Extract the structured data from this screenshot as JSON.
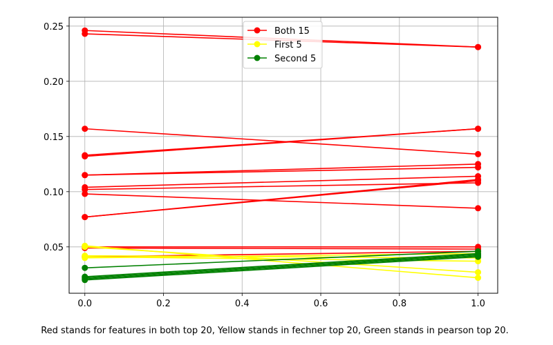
{
  "chart_data": {
    "type": "line",
    "title": "",
    "xlabel": "",
    "ylabel": "",
    "xlim": [
      -0.04,
      1.05
    ],
    "ylim": [
      0.008,
      0.258
    ],
    "grid": true,
    "legend_position": "top-center",
    "x_ticks": [
      0,
      0.2,
      0.4,
      0.6,
      0.8,
      1.0
    ],
    "x_tick_labels": [
      "0.0",
      "0.2",
      "0.4",
      "0.6",
      "0.8",
      "1.0"
    ],
    "y_ticks": [
      0.05,
      0.1,
      0.15,
      0.2,
      0.25
    ],
    "y_tick_labels": [
      "0.05",
      "0.10",
      "0.15",
      "0.20",
      "0.25"
    ],
    "legend": [
      {
        "name": "Both 15",
        "color": "#ff0000"
      },
      {
        "name": "First 5",
        "color": "#ffff00"
      },
      {
        "name": "Second 5",
        "color": "#008000"
      }
    ],
    "groups": [
      {
        "color": "#ff0000",
        "lines": [
          [
            0.246,
            0.231
          ],
          [
            0.243,
            0.231
          ],
          [
            0.157,
            0.134
          ],
          [
            0.133,
            0.157
          ],
          [
            0.132,
            0.157
          ],
          [
            0.115,
            0.125
          ],
          [
            0.115,
            0.122
          ],
          [
            0.104,
            0.114
          ],
          [
            0.102,
            0.108
          ],
          [
            0.098,
            0.085
          ],
          [
            0.077,
            0.111
          ],
          [
            0.077,
            0.11
          ],
          [
            0.05,
            0.05
          ],
          [
            0.049,
            0.048
          ],
          [
            0.041,
            0.046
          ]
        ]
      },
      {
        "color": "#ffff00",
        "lines": [
          [
            0.051,
            0.022
          ],
          [
            0.05,
            0.027
          ],
          [
            0.042,
            0.04
          ],
          [
            0.041,
            0.037
          ],
          [
            0.04,
            0.044
          ]
        ]
      },
      {
        "color": "#008000",
        "lines": [
          [
            0.031,
            0.046
          ],
          [
            0.023,
            0.044
          ],
          [
            0.022,
            0.043
          ],
          [
            0.021,
            0.042
          ],
          [
            0.02,
            0.041
          ]
        ]
      }
    ]
  },
  "caption": "Red stands for features in both top 20, Yellow stands in fechner top 20, Green stands in pearson top 20."
}
